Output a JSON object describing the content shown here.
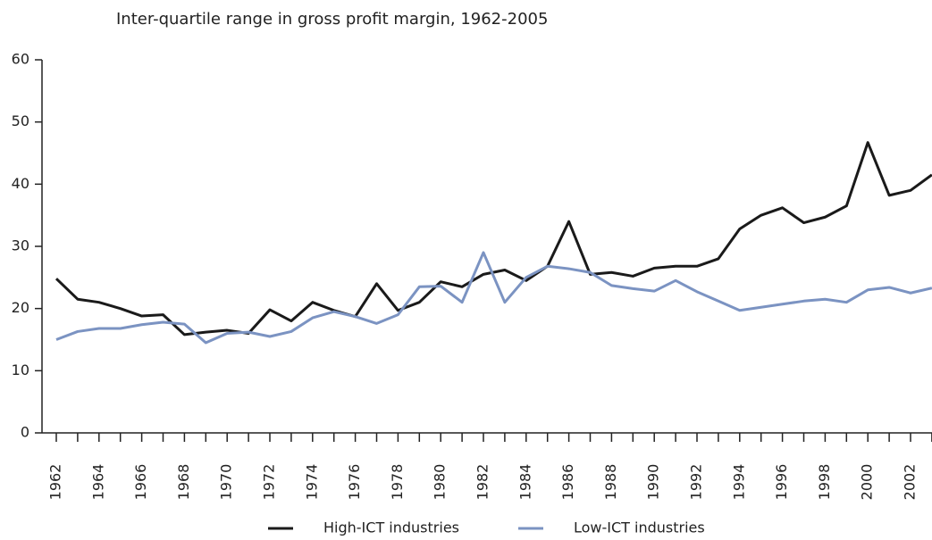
{
  "chart_data": {
    "type": "line",
    "title": "Inter-quartile range in gross profit margin, 1962-2005",
    "categories": [
      "1962",
      null,
      "1964",
      null,
      "1966",
      null,
      "1968",
      null,
      "1970",
      null,
      "1972",
      null,
      "1974",
      null,
      "1976",
      null,
      "1978",
      null,
      "1980",
      null,
      "1982",
      null,
      "1984",
      null,
      "1986",
      null,
      "1988",
      null,
      "1990",
      null,
      "1992",
      null,
      "1994",
      null,
      "1996",
      null,
      "1998",
      null,
      "2000",
      null,
      "2002",
      null
    ],
    "series": [
      {
        "name": "High-ICT industries",
        "color": "#1a1a1a",
        "values": [
          24.8,
          21.5,
          21,
          20,
          18.8,
          19,
          15.8,
          16.2,
          16.5,
          16,
          19.8,
          18,
          21,
          19.7,
          18.7,
          24,
          19.7,
          21,
          24.3,
          23.5,
          25.5,
          26.2,
          24.5,
          26.8,
          34,
          25.5,
          25.8,
          25.2,
          26.5,
          26.8,
          26.8,
          28,
          32.8,
          35,
          36.2,
          33.8,
          34.7,
          36.5,
          46.7,
          38.2,
          39,
          41.5
        ]
      },
      {
        "name": "Low-ICT industries",
        "color": "#7b93c2",
        "values": [
          15,
          16.3,
          16.8,
          16.8,
          17.4,
          17.8,
          17.5,
          14.5,
          16,
          16.2,
          15.5,
          16.3,
          18.5,
          19.5,
          18.7,
          17.6,
          19,
          23.5,
          23.6,
          21,
          29,
          21,
          25,
          26.8,
          26.4,
          25.8,
          23.7,
          23.2,
          22.8,
          24.5,
          22.7,
          21.2,
          19.7,
          20.2,
          20.7,
          21.2,
          21.5,
          21,
          23,
          23.4,
          22.5,
          23.3
        ]
      }
    ],
    "ylim": [
      0,
      60
    ],
    "yticks": [
      0,
      10,
      20,
      30,
      40,
      50,
      60
    ],
    "grid": false,
    "legend": "bottom"
  }
}
